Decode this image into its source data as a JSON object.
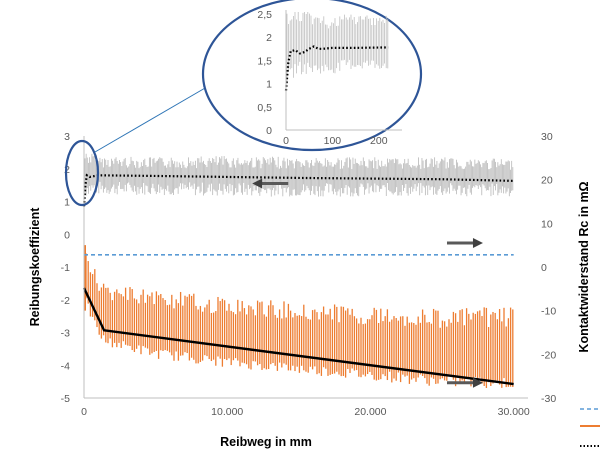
{
  "chart_data": {
    "type": "line",
    "title": "",
    "xlabel": "Reibweg in mm",
    "ylabel_left": "Reibungskoeffizient",
    "ylabel_right": "Kontaktwiderstand Rc in mΩ",
    "xlim": [
      0,
      31000
    ],
    "ylim_left": [
      -5,
      3
    ],
    "ylim_right": [
      -30,
      30
    ],
    "x_ticks": [
      "0",
      "10.000",
      "20.000",
      "30.000"
    ],
    "y_ticks_left": [
      "3",
      "2",
      "1",
      "0",
      "-1",
      "-2",
      "-3",
      "-4",
      "-5"
    ],
    "y_ticks_right": [
      "30",
      "20",
      "10",
      "0",
      "-10",
      "-20",
      "-30"
    ],
    "grid": false,
    "legend": "right (cropped)",
    "series": [
      {
        "style": "gray raw signal band (left axis)",
        "color": "#bfbfbf",
        "x": [
          0,
          200,
          1000,
          5000,
          10000,
          15000,
          20000,
          25000,
          30000
        ],
        "low": [
          0.9,
          1.2,
          1.2,
          1.2,
          1.15,
          1.15,
          1.15,
          1.15,
          1.15
        ],
        "high": [
          2.6,
          2.55,
          2.4,
          2.35,
          2.4,
          2.35,
          2.35,
          2.35,
          2.3
        ]
      },
      {
        "style": "black dotted mean (left axis)",
        "color": "#000000",
        "x": [
          0,
          100,
          200,
          400,
          1000,
          5000,
          10000,
          15000,
          20000,
          25000,
          30000
        ],
        "y": [
          0.85,
          1.5,
          1.8,
          1.75,
          1.8,
          1.78,
          1.75,
          1.72,
          1.7,
          1.68,
          1.63
        ]
      },
      {
        "style": "blue dashed (right axis)",
        "color": "#5b9bd5",
        "x": [
          0,
          1000,
          5000,
          10000,
          15000,
          20000,
          25000,
          30000
        ],
        "y": [
          2.8,
          2.8,
          2.8,
          2.8,
          2.8,
          2.8,
          2.8,
          2.8
        ]
      },
      {
        "style": "orange oscillating band (right axis)",
        "color": "#ed7d31",
        "x": [
          0,
          1000,
          1500,
          5000,
          10000,
          15000,
          20000,
          25000,
          30000
        ],
        "low": [
          -8,
          -16,
          -18,
          -21,
          -23,
          -24.5,
          -26,
          -27.5,
          -28
        ],
        "high": [
          5,
          -2,
          -4,
          -5,
          -7,
          -8,
          -9,
          -9.5,
          -9
        ]
      },
      {
        "style": "black fit line (right axis)",
        "color": "#000000",
        "x": [
          0,
          1400,
          30000
        ],
        "y": [
          -4.8,
          -14.5,
          -26.8
        ]
      }
    ],
    "arrows": [
      {
        "direction": "left",
        "axis": "left",
        "x": 13000,
        "y": 1.55
      },
      {
        "direction": "right",
        "axis": "right",
        "x": 26600,
        "y": 5.5
      },
      {
        "direction": "right",
        "axis": "right",
        "x": 26600,
        "y": -26.5
      }
    ],
    "inset": {
      "type": "line",
      "xlim": [
        0,
        250
      ],
      "ylim": [
        0,
        2.5
      ],
      "x_ticks": [
        "0",
        "100",
        "200"
      ],
      "y_ticks": [
        "0",
        "0,5",
        "1",
        "1,5",
        "2",
        "2,5"
      ],
      "series": [
        {
          "style": "gray raw signal (zoom)",
          "color": "#bfbfbf",
          "x": [
            0,
            10,
            20,
            50,
            100,
            130,
            220
          ],
          "low": [
            0.9,
            1.0,
            1.2,
            1.2,
            1.2,
            1.3,
            1.3
          ],
          "high": [
            2.6,
            2.6,
            2.6,
            2.55,
            2.4,
            2.5,
            2.5
          ]
        },
        {
          "style": "black dotted mean (zoom)",
          "color": "#000000",
          "x": [
            0,
            5,
            10,
            20,
            30,
            40,
            50,
            60,
            70,
            80,
            100,
            150,
            220
          ],
          "y": [
            0.85,
            1.45,
            1.7,
            1.72,
            1.65,
            1.68,
            1.75,
            1.8,
            1.75,
            1.75,
            1.77,
            1.77,
            1.78
          ]
        }
      ]
    }
  }
}
